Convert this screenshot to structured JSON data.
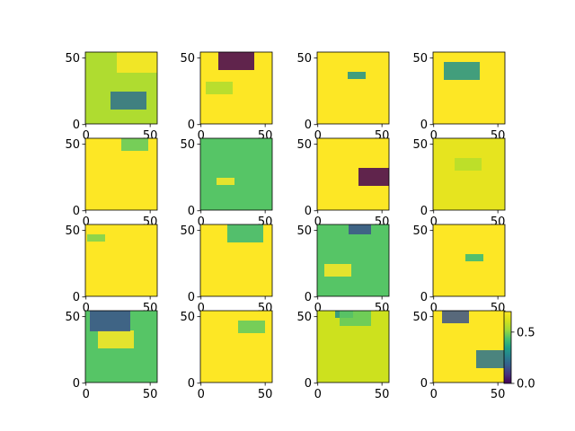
{
  "figure": {
    "rows": 4,
    "cols": 4
  },
  "chart_data": {
    "type": "heatmap",
    "colormap": "viridis",
    "image_shape": [
      56,
      56
    ],
    "xlim": [
      0,
      55
    ],
    "ylim": [
      55,
      0
    ],
    "xticks": [
      0,
      50
    ],
    "yticks": [
      0,
      50
    ],
    "axes_with_xtick_labels": "all",
    "axes_with_ytick_labels": "all",
    "panels": [
      {
        "row": 0,
        "col": 0,
        "dominant_value": 0.55,
        "description_colors": [
          "#26a785",
          "#2d708e",
          "#fde725"
        ]
      },
      {
        "row": 0,
        "col": 1,
        "dominant_value": 0.7,
        "description_colors": [
          "#fde725",
          "#addc30",
          "#440154"
        ]
      },
      {
        "row": 0,
        "col": 2,
        "dominant_value": 0.7,
        "description_colors": [
          "#fde725",
          "#21918c"
        ]
      },
      {
        "row": 0,
        "col": 3,
        "dominant_value": 0.7,
        "description_colors": [
          "#fde725",
          "#21918c"
        ]
      },
      {
        "row": 1,
        "col": 0,
        "dominant_value": 0.7,
        "description_colors": [
          "#fde725",
          "#5ec962"
        ]
      },
      {
        "row": 1,
        "col": 1,
        "dominant_value": 0.45,
        "description_colors": [
          "#21918c",
          "#fde725"
        ]
      },
      {
        "row": 1,
        "col": 2,
        "dominant_value": 0.7,
        "description_colors": [
          "#fde725",
          "#440154"
        ]
      },
      {
        "row": 1,
        "col": 3,
        "dominant_value": 0.65,
        "description_colors": [
          "#fde725",
          "#b5de2b"
        ]
      },
      {
        "row": 2,
        "col": 0,
        "dominant_value": 0.7,
        "description_colors": [
          "#fde725",
          "#7ad151"
        ]
      },
      {
        "row": 2,
        "col": 1,
        "dominant_value": 0.7,
        "description_colors": [
          "#fde725",
          "#35b779"
        ]
      },
      {
        "row": 2,
        "col": 2,
        "dominant_value": 0.45,
        "description_colors": [
          "#21918c",
          "#fde725",
          "#3b528b"
        ]
      },
      {
        "row": 2,
        "col": 3,
        "dominant_value": 0.7,
        "description_colors": [
          "#fde725",
          "#35b779"
        ]
      },
      {
        "row": 3,
        "col": 0,
        "dominant_value": 0.45,
        "description_colors": [
          "#21918c",
          "#fde725",
          "#3b528b"
        ]
      },
      {
        "row": 3,
        "col": 1,
        "dominant_value": 0.7,
        "description_colors": [
          "#fde725",
          "#5ec962"
        ]
      },
      {
        "row": 3,
        "col": 2,
        "dominant_value": 0.6,
        "description_colors": [
          "#fde725",
          "#21918c",
          "#5ec962"
        ]
      },
      {
        "row": 3,
        "col": 3,
        "dominant_value": 0.7,
        "description_colors": [
          "#fde725",
          "#2c728e",
          "#3b528b"
        ]
      }
    ],
    "colorbar": {
      "range": [
        0.0,
        0.7
      ],
      "ticks": [
        0.0,
        0.5
      ],
      "tick_labels": [
        "0.0",
        "0.5"
      ],
      "attached_to": "row 3, col 3"
    },
    "title": "",
    "xlabel": "",
    "ylabel": ""
  }
}
